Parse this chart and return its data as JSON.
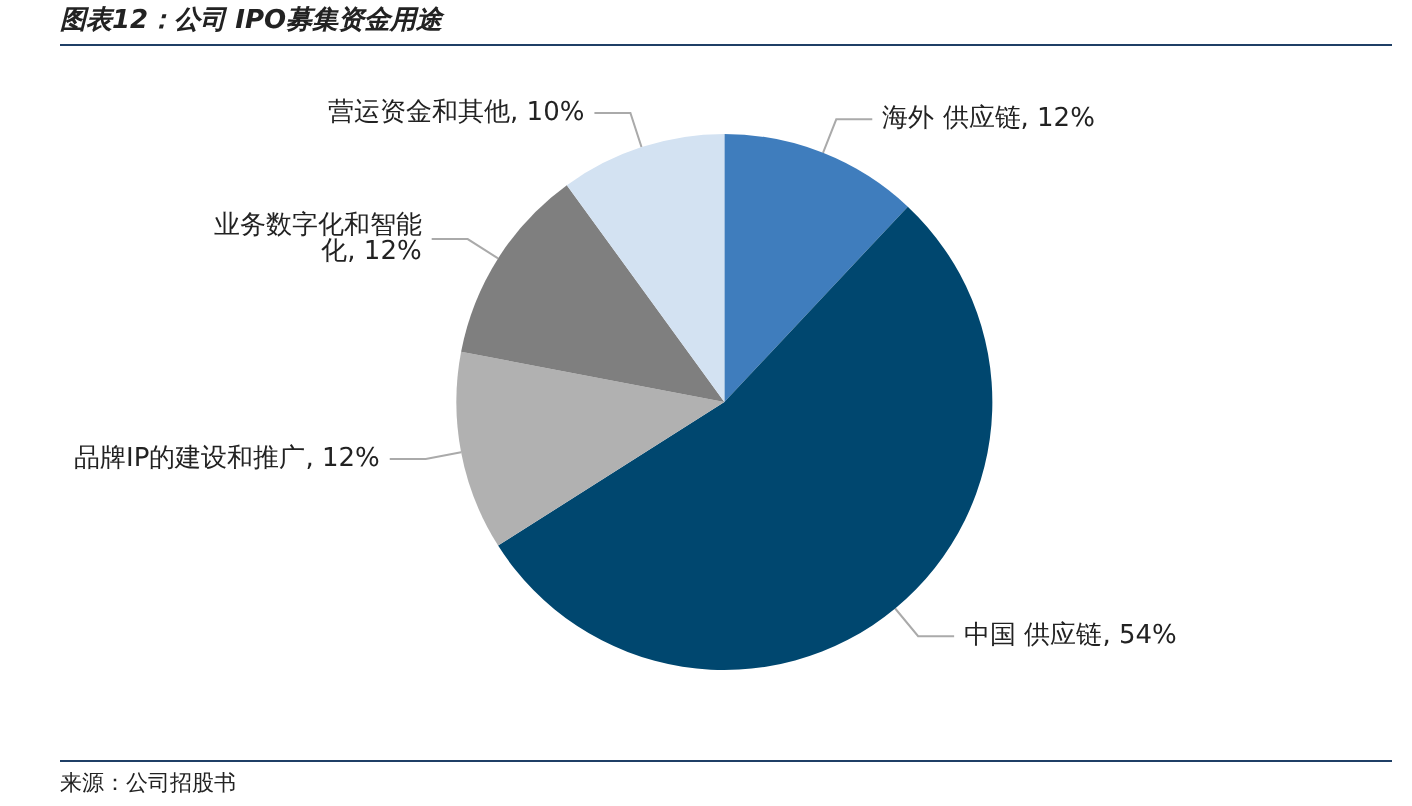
{
  "chart_data": {
    "type": "pie",
    "title": "图表12：公司 IPO募集资金用途",
    "categories": [
      "海外 供应链",
      "中国 供应链",
      "品牌IP的建设和推广",
      "业务数字化和智能化",
      "营运资金和其他"
    ],
    "values": [
      12,
      54,
      12,
      12,
      10
    ],
    "value_labels": [
      "12%",
      "54%",
      "12%",
      "12%",
      "10%"
    ],
    "colors": [
      "#3f7dbd",
      "#00476f",
      "#b1b1b1",
      "#7f7f7f",
      "#d3e2f2"
    ],
    "annotations": [
      "来源：公司招股书"
    ]
  }
}
